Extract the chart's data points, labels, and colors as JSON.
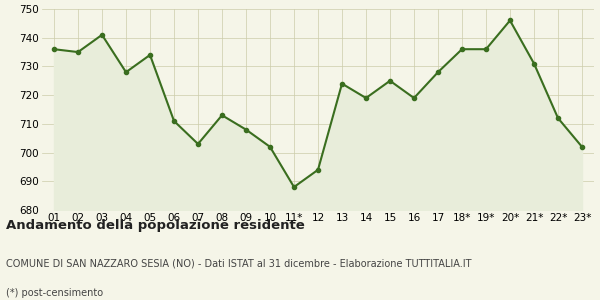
{
  "x_labels": [
    "01",
    "02",
    "03",
    "04",
    "05",
    "06",
    "07",
    "08",
    "09",
    "10",
    "11*",
    "12",
    "13",
    "14",
    "15",
    "16",
    "17",
    "18*",
    "19*",
    "20*",
    "21*",
    "22*",
    "23*"
  ],
  "y_values": [
    736,
    735,
    741,
    728,
    734,
    711,
    703,
    713,
    708,
    702,
    688,
    694,
    724,
    719,
    725,
    719,
    728,
    736,
    736,
    746,
    731,
    712,
    702
  ],
  "ylim": [
    680,
    750
  ],
  "yticks": [
    680,
    690,
    700,
    710,
    720,
    730,
    740,
    750
  ],
  "line_color": "#3a6e1f",
  "fill_color": "#e8edda",
  "marker": "o",
  "marker_size": 3.0,
  "line_width": 1.5,
  "bg_color": "#f5f5e8",
  "grid_color": "#ccccaa",
  "title_bold": "Andamento della popolazione residente",
  "subtitle": "COMUNE DI SAN NAZZARO SESIA (NO) - Dati ISTAT al 31 dicembre - Elaborazione TUTTITALIA.IT",
  "footnote": "(*) post-censimento",
  "title_fontsize": 9.5,
  "subtitle_fontsize": 7.0,
  "footnote_fontsize": 7.0,
  "tick_fontsize": 7.5
}
